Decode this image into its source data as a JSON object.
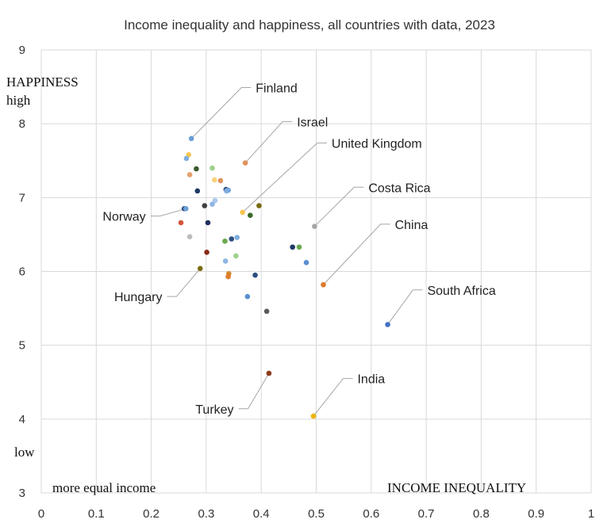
{
  "chart_data": {
    "type": "scatter",
    "title": "Income inequality and happiness, all countries with data, 2023",
    "xlabel": "INCOME  INEQUALITY",
    "ylabel": "HAPPINESS",
    "ylabel_high": "high",
    "ylabel_low": "low",
    "xlabel_left": "more  equal  income",
    "xlim": [
      0,
      1
    ],
    "ylim": [
      3,
      9
    ],
    "x_ticks": [
      "0",
      "0.1",
      "0.2",
      "0.3",
      "0.4",
      "0.5",
      "0.6",
      "0.7",
      "0.8",
      "0.9",
      "1"
    ],
    "y_ticks": [
      "3",
      "4",
      "5",
      "6",
      "7",
      "8",
      "9"
    ],
    "grid": true,
    "legend": "none",
    "points": [
      {
        "x": 0.273,
        "y": 7.8,
        "color": "#6a9fd4"
      },
      {
        "x": 0.371,
        "y": 7.47,
        "color": "#e0925a"
      },
      {
        "x": 0.268,
        "y": 7.58,
        "color": "#f5c64f"
      },
      {
        "x": 0.264,
        "y": 7.53,
        "color": "#7faee0"
      },
      {
        "x": 0.282,
        "y": 7.39,
        "color": "#3a5a2a"
      },
      {
        "x": 0.311,
        "y": 7.4,
        "color": "#9fd08a"
      },
      {
        "x": 0.27,
        "y": 7.31,
        "color": "#e8a06e"
      },
      {
        "x": 0.315,
        "y": 7.24,
        "color": "#f8d27a"
      },
      {
        "x": 0.326,
        "y": 7.23,
        "color": "#e0925a"
      },
      {
        "x": 0.336,
        "y": 7.11,
        "color": "#2e4e80"
      },
      {
        "x": 0.34,
        "y": 7.1,
        "color": "#6a9fd4"
      },
      {
        "x": 0.337,
        "y": 7.09,
        "color": "#7faee0"
      },
      {
        "x": 0.284,
        "y": 7.09,
        "color": "#1f3864"
      },
      {
        "x": 0.316,
        "y": 6.96,
        "color": "#aac8ec"
      },
      {
        "x": 0.311,
        "y": 6.91,
        "color": "#8db7e3"
      },
      {
        "x": 0.297,
        "y": 6.89,
        "color": "#404040"
      },
      {
        "x": 0.396,
        "y": 6.89,
        "color": "#7a6a10"
      },
      {
        "x": 0.26,
        "y": 6.85,
        "color": "#2e4e80"
      },
      {
        "x": 0.263,
        "y": 6.85,
        "color": "#6a9fd4"
      },
      {
        "x": 0.366,
        "y": 6.8,
        "color": "#f5c64f"
      },
      {
        "x": 0.38,
        "y": 6.76,
        "color": "#3a6a28"
      },
      {
        "x": 0.303,
        "y": 6.66,
        "color": "#203060"
      },
      {
        "x": 0.254,
        "y": 6.66,
        "color": "#d2553a"
      },
      {
        "x": 0.497,
        "y": 6.61,
        "color": "#a5a5a5"
      },
      {
        "x": 0.27,
        "y": 6.47,
        "color": "#bdbdbd"
      },
      {
        "x": 0.356,
        "y": 6.46,
        "color": "#7faee0"
      },
      {
        "x": 0.346,
        "y": 6.44,
        "color": "#2e4e80"
      },
      {
        "x": 0.334,
        "y": 6.41,
        "color": "#6aa84f"
      },
      {
        "x": 0.457,
        "y": 6.33,
        "color": "#1f3864"
      },
      {
        "x": 0.469,
        "y": 6.33,
        "color": "#6aa84f"
      },
      {
        "x": 0.301,
        "y": 6.26,
        "color": "#8b2a1a"
      },
      {
        "x": 0.354,
        "y": 6.21,
        "color": "#9fd08a"
      },
      {
        "x": 0.335,
        "y": 6.14,
        "color": "#8db7e3"
      },
      {
        "x": 0.482,
        "y": 6.12,
        "color": "#5a8fd0"
      },
      {
        "x": 0.289,
        "y": 6.04,
        "color": "#7a6a10"
      },
      {
        "x": 0.341,
        "y": 5.97,
        "color": "#d58a2a"
      },
      {
        "x": 0.34,
        "y": 5.93,
        "color": "#e07a2a"
      },
      {
        "x": 0.389,
        "y": 5.95,
        "color": "#2e4e80"
      },
      {
        "x": 0.513,
        "y": 5.82,
        "color": "#e07a2a"
      },
      {
        "x": 0.375,
        "y": 5.66,
        "color": "#5a8fd0"
      },
      {
        "x": 0.41,
        "y": 5.46,
        "color": "#595959"
      },
      {
        "x": 0.63,
        "y": 5.28,
        "color": "#4472c4"
      },
      {
        "x": 0.414,
        "y": 4.62,
        "color": "#8b3a1a"
      },
      {
        "x": 0.495,
        "y": 4.04,
        "color": "#f0b400"
      }
    ],
    "annotations": [
      {
        "label": "Finland",
        "x": 0.273,
        "y": 7.8,
        "lx": 0.39,
        "ly": 8.49,
        "anchor": "start"
      },
      {
        "label": "Israel",
        "x": 0.371,
        "y": 7.47,
        "lx": 0.465,
        "ly": 8.03,
        "anchor": "start"
      },
      {
        "label": "United Kingdom",
        "x": 0.366,
        "y": 6.8,
        "lx": 0.528,
        "ly": 7.74,
        "anchor": "start"
      },
      {
        "label": "Costa Rica",
        "x": 0.497,
        "y": 6.61,
        "lx": 0.595,
        "ly": 7.14,
        "anchor": "start"
      },
      {
        "label": "China",
        "x": 0.513,
        "y": 5.82,
        "lx": 0.643,
        "ly": 6.64,
        "anchor": "start"
      },
      {
        "label": "South Africa",
        "x": 0.63,
        "y": 5.28,
        "lx": 0.702,
        "ly": 5.75,
        "anchor": "start"
      },
      {
        "label": "India",
        "x": 0.495,
        "y": 4.04,
        "lx": 0.575,
        "ly": 4.55,
        "anchor": "start"
      },
      {
        "label": "Norway",
        "x": 0.263,
        "y": 6.85,
        "lx": 0.19,
        "ly": 6.75,
        "anchor": "end"
      },
      {
        "label": "Hungary",
        "x": 0.289,
        "y": 6.04,
        "lx": 0.22,
        "ly": 5.66,
        "anchor": "end"
      },
      {
        "label": "Turkey",
        "x": 0.414,
        "y": 4.62,
        "lx": 0.35,
        "ly": 4.14,
        "anchor": "end"
      }
    ]
  }
}
